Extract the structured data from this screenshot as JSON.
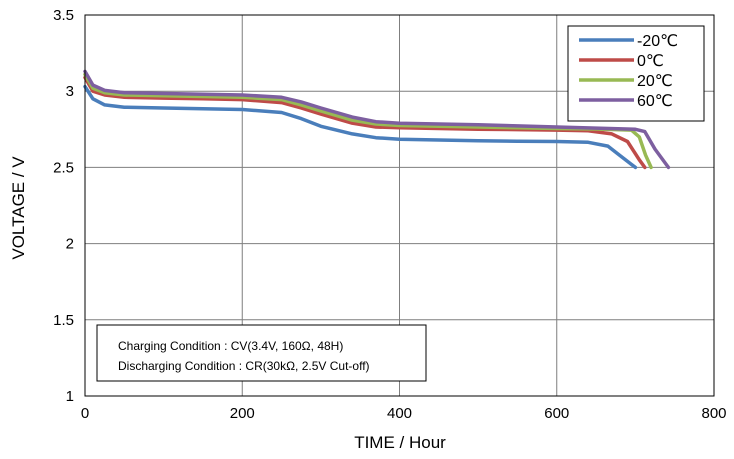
{
  "chart_data": {
    "type": "line",
    "xlabel": "TIME / Hour",
    "ylabel": "VOLTAGE / V",
    "xlim": [
      0,
      800
    ],
    "ylim": [
      1,
      3.5
    ],
    "xticks": [
      "0",
      "200",
      "400",
      "600",
      "800"
    ],
    "yticks": [
      "1",
      "1.5",
      "2",
      "2.5",
      "3",
      "3.5"
    ],
    "grid": true,
    "legend_position": "top-right",
    "annotation_lines": [
      "Charging Condition : CV(3.4V, 160Ω, 48H)",
      "Discharging Condition : CR(30kΩ, 2.5V Cut-off)"
    ],
    "series": [
      {
        "name": "-20℃",
        "color": "#4a7ebb",
        "points": [
          [
            0,
            3.03
          ],
          [
            10,
            2.95
          ],
          [
            25,
            2.91
          ],
          [
            50,
            2.895
          ],
          [
            100,
            2.89
          ],
          [
            150,
            2.885
          ],
          [
            200,
            2.88
          ],
          [
            250,
            2.86
          ],
          [
            275,
            2.82
          ],
          [
            300,
            2.77
          ],
          [
            340,
            2.72
          ],
          [
            370,
            2.695
          ],
          [
            400,
            2.685
          ],
          [
            450,
            2.68
          ],
          [
            500,
            2.675
          ],
          [
            550,
            2.672
          ],
          [
            600,
            2.67
          ],
          [
            640,
            2.665
          ],
          [
            665,
            2.64
          ],
          [
            680,
            2.58
          ],
          [
            695,
            2.52
          ],
          [
            700,
            2.5
          ]
        ]
      },
      {
        "name": "0℃",
        "color": "#be4b48",
        "points": [
          [
            0,
            3.09
          ],
          [
            10,
            3.0
          ],
          [
            25,
            2.975
          ],
          [
            50,
            2.96
          ],
          [
            100,
            2.955
          ],
          [
            150,
            2.95
          ],
          [
            200,
            2.945
          ],
          [
            250,
            2.925
          ],
          [
            275,
            2.89
          ],
          [
            300,
            2.85
          ],
          [
            340,
            2.79
          ],
          [
            370,
            2.765
          ],
          [
            400,
            2.76
          ],
          [
            450,
            2.755
          ],
          [
            500,
            2.75
          ],
          [
            550,
            2.748
          ],
          [
            600,
            2.745
          ],
          [
            640,
            2.74
          ],
          [
            670,
            2.72
          ],
          [
            690,
            2.67
          ],
          [
            705,
            2.55
          ],
          [
            712,
            2.5
          ]
        ]
      },
      {
        "name": "20℃",
        "color": "#98b954",
        "points": [
          [
            0,
            3.11
          ],
          [
            10,
            3.02
          ],
          [
            25,
            2.99
          ],
          [
            50,
            2.975
          ],
          [
            100,
            2.97
          ],
          [
            150,
            2.965
          ],
          [
            200,
            2.96
          ],
          [
            250,
            2.945
          ],
          [
            275,
            2.91
          ],
          [
            300,
            2.87
          ],
          [
            340,
            2.81
          ],
          [
            370,
            2.785
          ],
          [
            400,
            2.775
          ],
          [
            450,
            2.77
          ],
          [
            500,
            2.765
          ],
          [
            550,
            2.76
          ],
          [
            600,
            2.755
          ],
          [
            650,
            2.752
          ],
          [
            695,
            2.745
          ],
          [
            705,
            2.7
          ],
          [
            713,
            2.58
          ],
          [
            720,
            2.5
          ]
        ]
      },
      {
        "name": "60℃",
        "color": "#7d5fa0",
        "points": [
          [
            0,
            3.13
          ],
          [
            10,
            3.04
          ],
          [
            25,
            3.005
          ],
          [
            50,
            2.99
          ],
          [
            100,
            2.985
          ],
          [
            150,
            2.98
          ],
          [
            200,
            2.975
          ],
          [
            250,
            2.96
          ],
          [
            275,
            2.93
          ],
          [
            300,
            2.89
          ],
          [
            340,
            2.83
          ],
          [
            370,
            2.8
          ],
          [
            400,
            2.79
          ],
          [
            450,
            2.785
          ],
          [
            500,
            2.78
          ],
          [
            550,
            2.772
          ],
          [
            600,
            2.765
          ],
          [
            650,
            2.758
          ],
          [
            700,
            2.75
          ],
          [
            712,
            2.735
          ],
          [
            725,
            2.62
          ],
          [
            742,
            2.5
          ]
        ]
      }
    ]
  }
}
